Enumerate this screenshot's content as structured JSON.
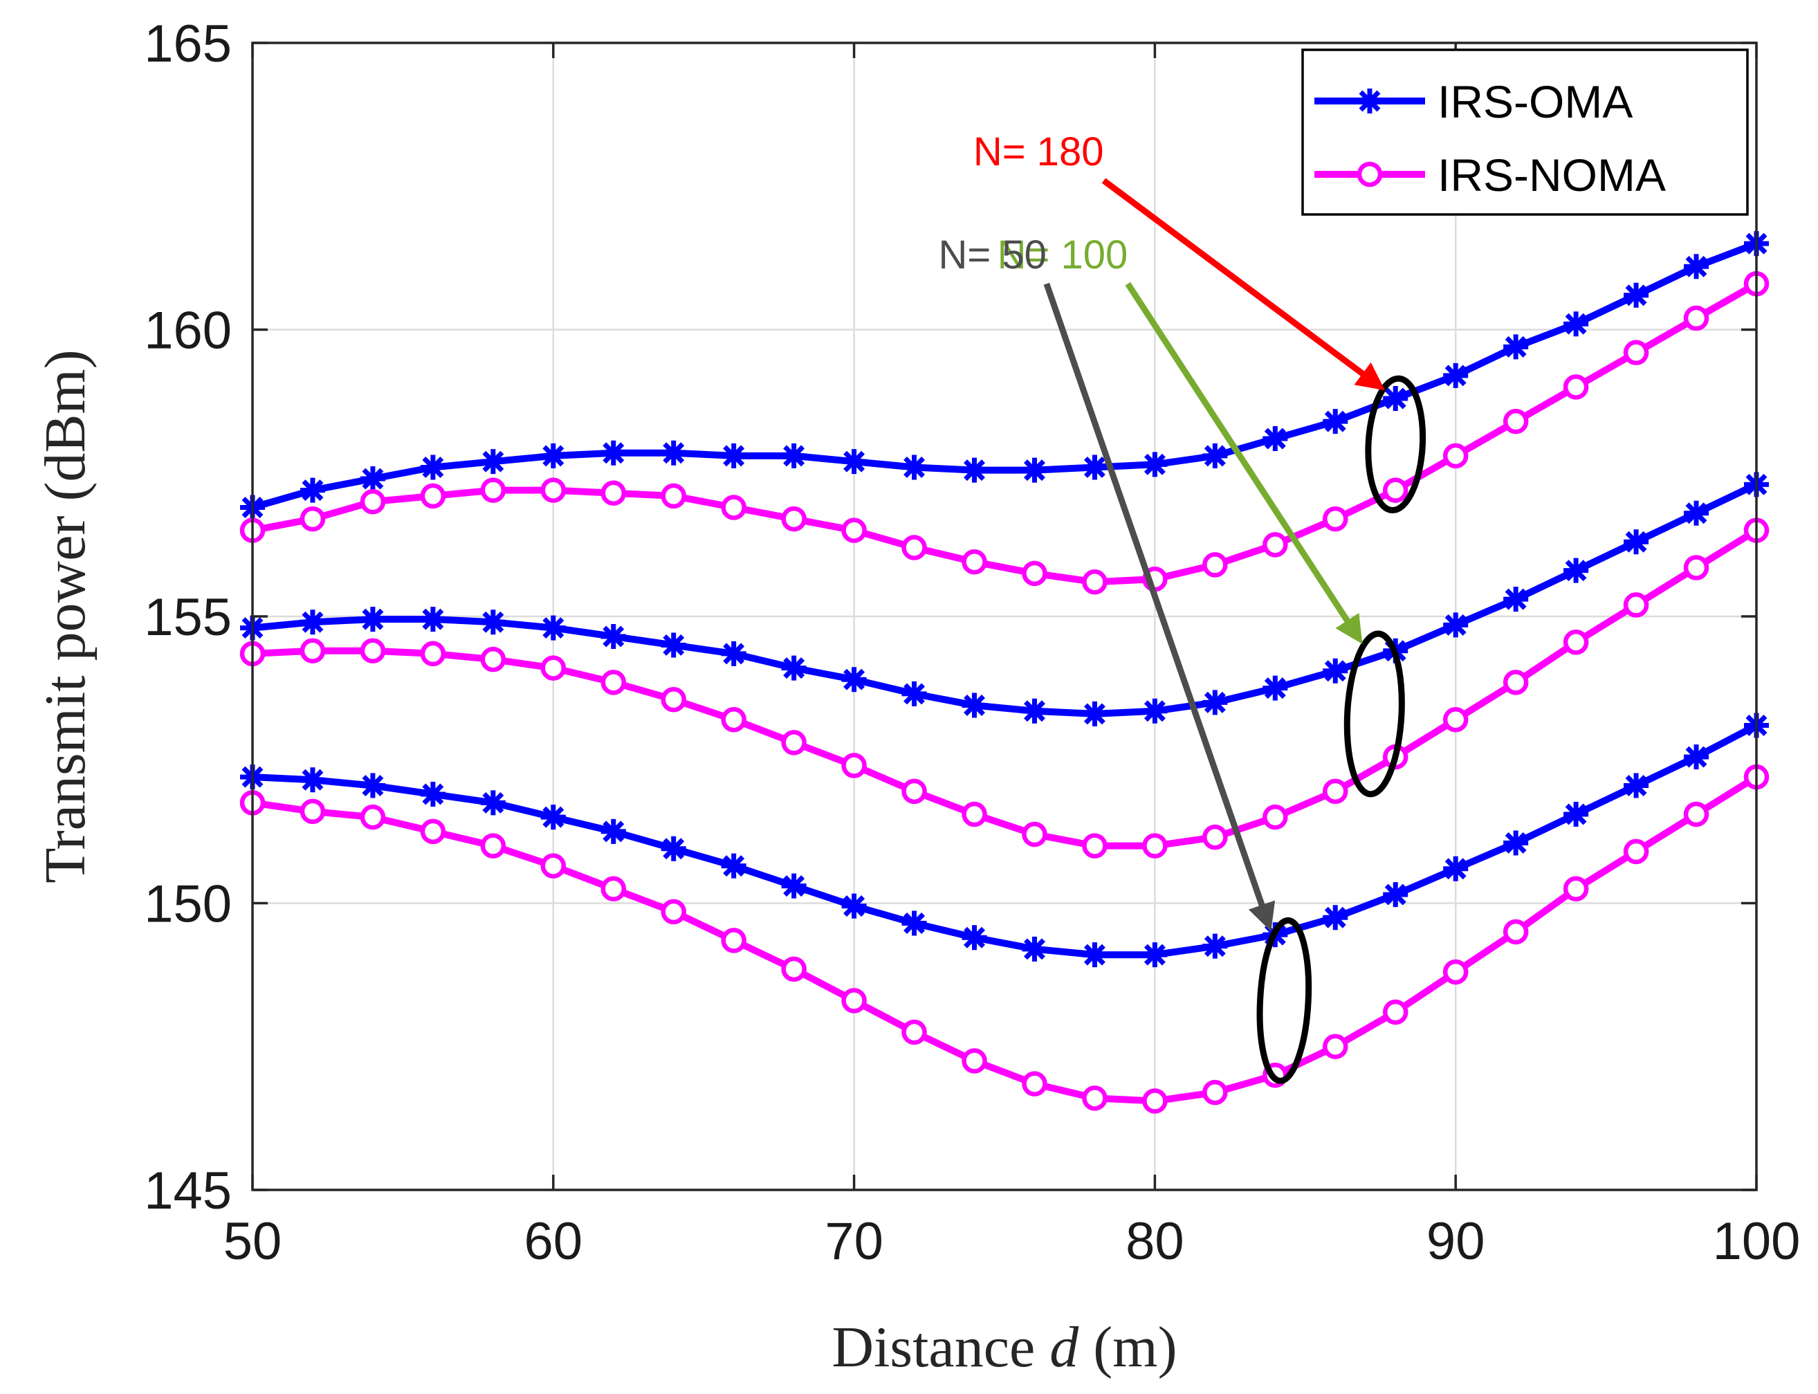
{
  "chart_data": {
    "type": "line",
    "title": "",
    "xlabel": {
      "prefix": "Distance ",
      "variable": "d",
      "suffix": " (m)"
    },
    "ylabel": "Transmit power (dBm)",
    "xlim": [
      50,
      100
    ],
    "ylim": [
      145,
      165
    ],
    "xticks": [
      50,
      60,
      70,
      80,
      90,
      100
    ],
    "yticks": [
      145,
      150,
      155,
      160,
      165
    ],
    "grid": true,
    "legend_position": "top-right",
    "legend": [
      {
        "name": "IRS-OMA",
        "color": "#0000ff",
        "marker": "asterisk"
      },
      {
        "name": "IRS-NOMA",
        "color": "#ff00ff",
        "marker": "circle"
      }
    ],
    "x": [
      50,
      52,
      54,
      56,
      58,
      60,
      62,
      64,
      66,
      68,
      70,
      72,
      74,
      76,
      78,
      80,
      82,
      84,
      86,
      88,
      90,
      92,
      94,
      96,
      98,
      100
    ],
    "series": [
      {
        "name": "IRS-OMA",
        "group": "N= 180",
        "color": "#0000ff",
        "marker": "asterisk",
        "values": [
          156.9,
          157.2,
          157.4,
          157.6,
          157.7,
          157.8,
          157.85,
          157.85,
          157.8,
          157.8,
          157.7,
          157.6,
          157.55,
          157.55,
          157.6,
          157.65,
          157.8,
          158.1,
          158.4,
          158.8,
          159.2,
          159.7,
          160.1,
          160.6,
          161.1,
          161.5
        ]
      },
      {
        "name": "IRS-NOMA",
        "group": "N= 180",
        "color": "#ff00ff",
        "marker": "circle",
        "values": [
          156.5,
          156.7,
          157.0,
          157.1,
          157.2,
          157.2,
          157.15,
          157.1,
          156.9,
          156.7,
          156.5,
          156.2,
          155.95,
          155.75,
          155.6,
          155.65,
          155.9,
          156.25,
          156.7,
          157.2,
          157.8,
          158.4,
          159.0,
          159.6,
          160.2,
          160.8
        ]
      },
      {
        "name": "IRS-OMA",
        "group": "N= 100",
        "color": "#0000ff",
        "marker": "asterisk",
        "values": [
          154.8,
          154.9,
          154.95,
          154.95,
          154.9,
          154.8,
          154.65,
          154.5,
          154.35,
          154.1,
          153.9,
          153.65,
          153.45,
          153.35,
          153.3,
          153.35,
          153.5,
          153.75,
          154.05,
          154.4,
          154.85,
          155.3,
          155.8,
          156.3,
          156.8,
          157.3
        ]
      },
      {
        "name": "IRS-NOMA",
        "group": "N= 100",
        "color": "#ff00ff",
        "marker": "circle",
        "values": [
          154.35,
          154.4,
          154.4,
          154.35,
          154.25,
          154.1,
          153.85,
          153.55,
          153.2,
          152.8,
          152.4,
          151.95,
          151.55,
          151.2,
          151.0,
          151.0,
          151.15,
          151.5,
          151.95,
          152.55,
          153.2,
          153.85,
          154.55,
          155.2,
          155.85,
          156.5
        ]
      },
      {
        "name": "IRS-OMA",
        "group": "N= 50",
        "color": "#0000ff",
        "marker": "asterisk",
        "values": [
          152.2,
          152.15,
          152.05,
          151.9,
          151.75,
          151.5,
          151.25,
          150.95,
          150.65,
          150.3,
          149.95,
          149.65,
          149.4,
          149.2,
          149.1,
          149.1,
          149.25,
          149.45,
          149.75,
          150.15,
          150.6,
          151.05,
          151.55,
          152.05,
          152.55,
          153.1
        ]
      },
      {
        "name": "IRS-NOMA",
        "group": "N= 50",
        "color": "#ff00ff",
        "marker": "circle",
        "values": [
          151.75,
          151.6,
          151.5,
          151.25,
          151.0,
          150.65,
          150.25,
          149.85,
          149.35,
          148.85,
          148.3,
          147.75,
          147.25,
          146.85,
          146.6,
          146.55,
          146.7,
          147.0,
          147.5,
          148.1,
          148.8,
          149.5,
          150.25,
          150.9,
          151.55,
          152.2
        ]
      }
    ],
    "annotations": [
      {
        "label": "N= 180",
        "color": "#ff0000",
        "from": [
          78.3,
          162.6
        ],
        "to": [
          87.5,
          159.0
        ],
        "ellipse_center": [
          88.0,
          158.0
        ],
        "ellipse_radii": [
          0.9,
          1.15
        ]
      },
      {
        "label": "N= 100",
        "color": "#77ac30",
        "from": [
          79.1,
          160.8
        ],
        "to": [
          86.8,
          154.6
        ],
        "ellipse_center": [
          87.3,
          153.3
        ],
        "ellipse_radii": [
          0.9,
          1.4
        ]
      },
      {
        "label": "N= 50",
        "color": "#4d4d4d",
        "from": [
          76.4,
          160.8
        ],
        "to": [
          83.8,
          149.6
        ],
        "ellipse_center": [
          84.3,
          148.3
        ],
        "ellipse_radii": [
          0.8,
          1.4
        ]
      }
    ]
  }
}
